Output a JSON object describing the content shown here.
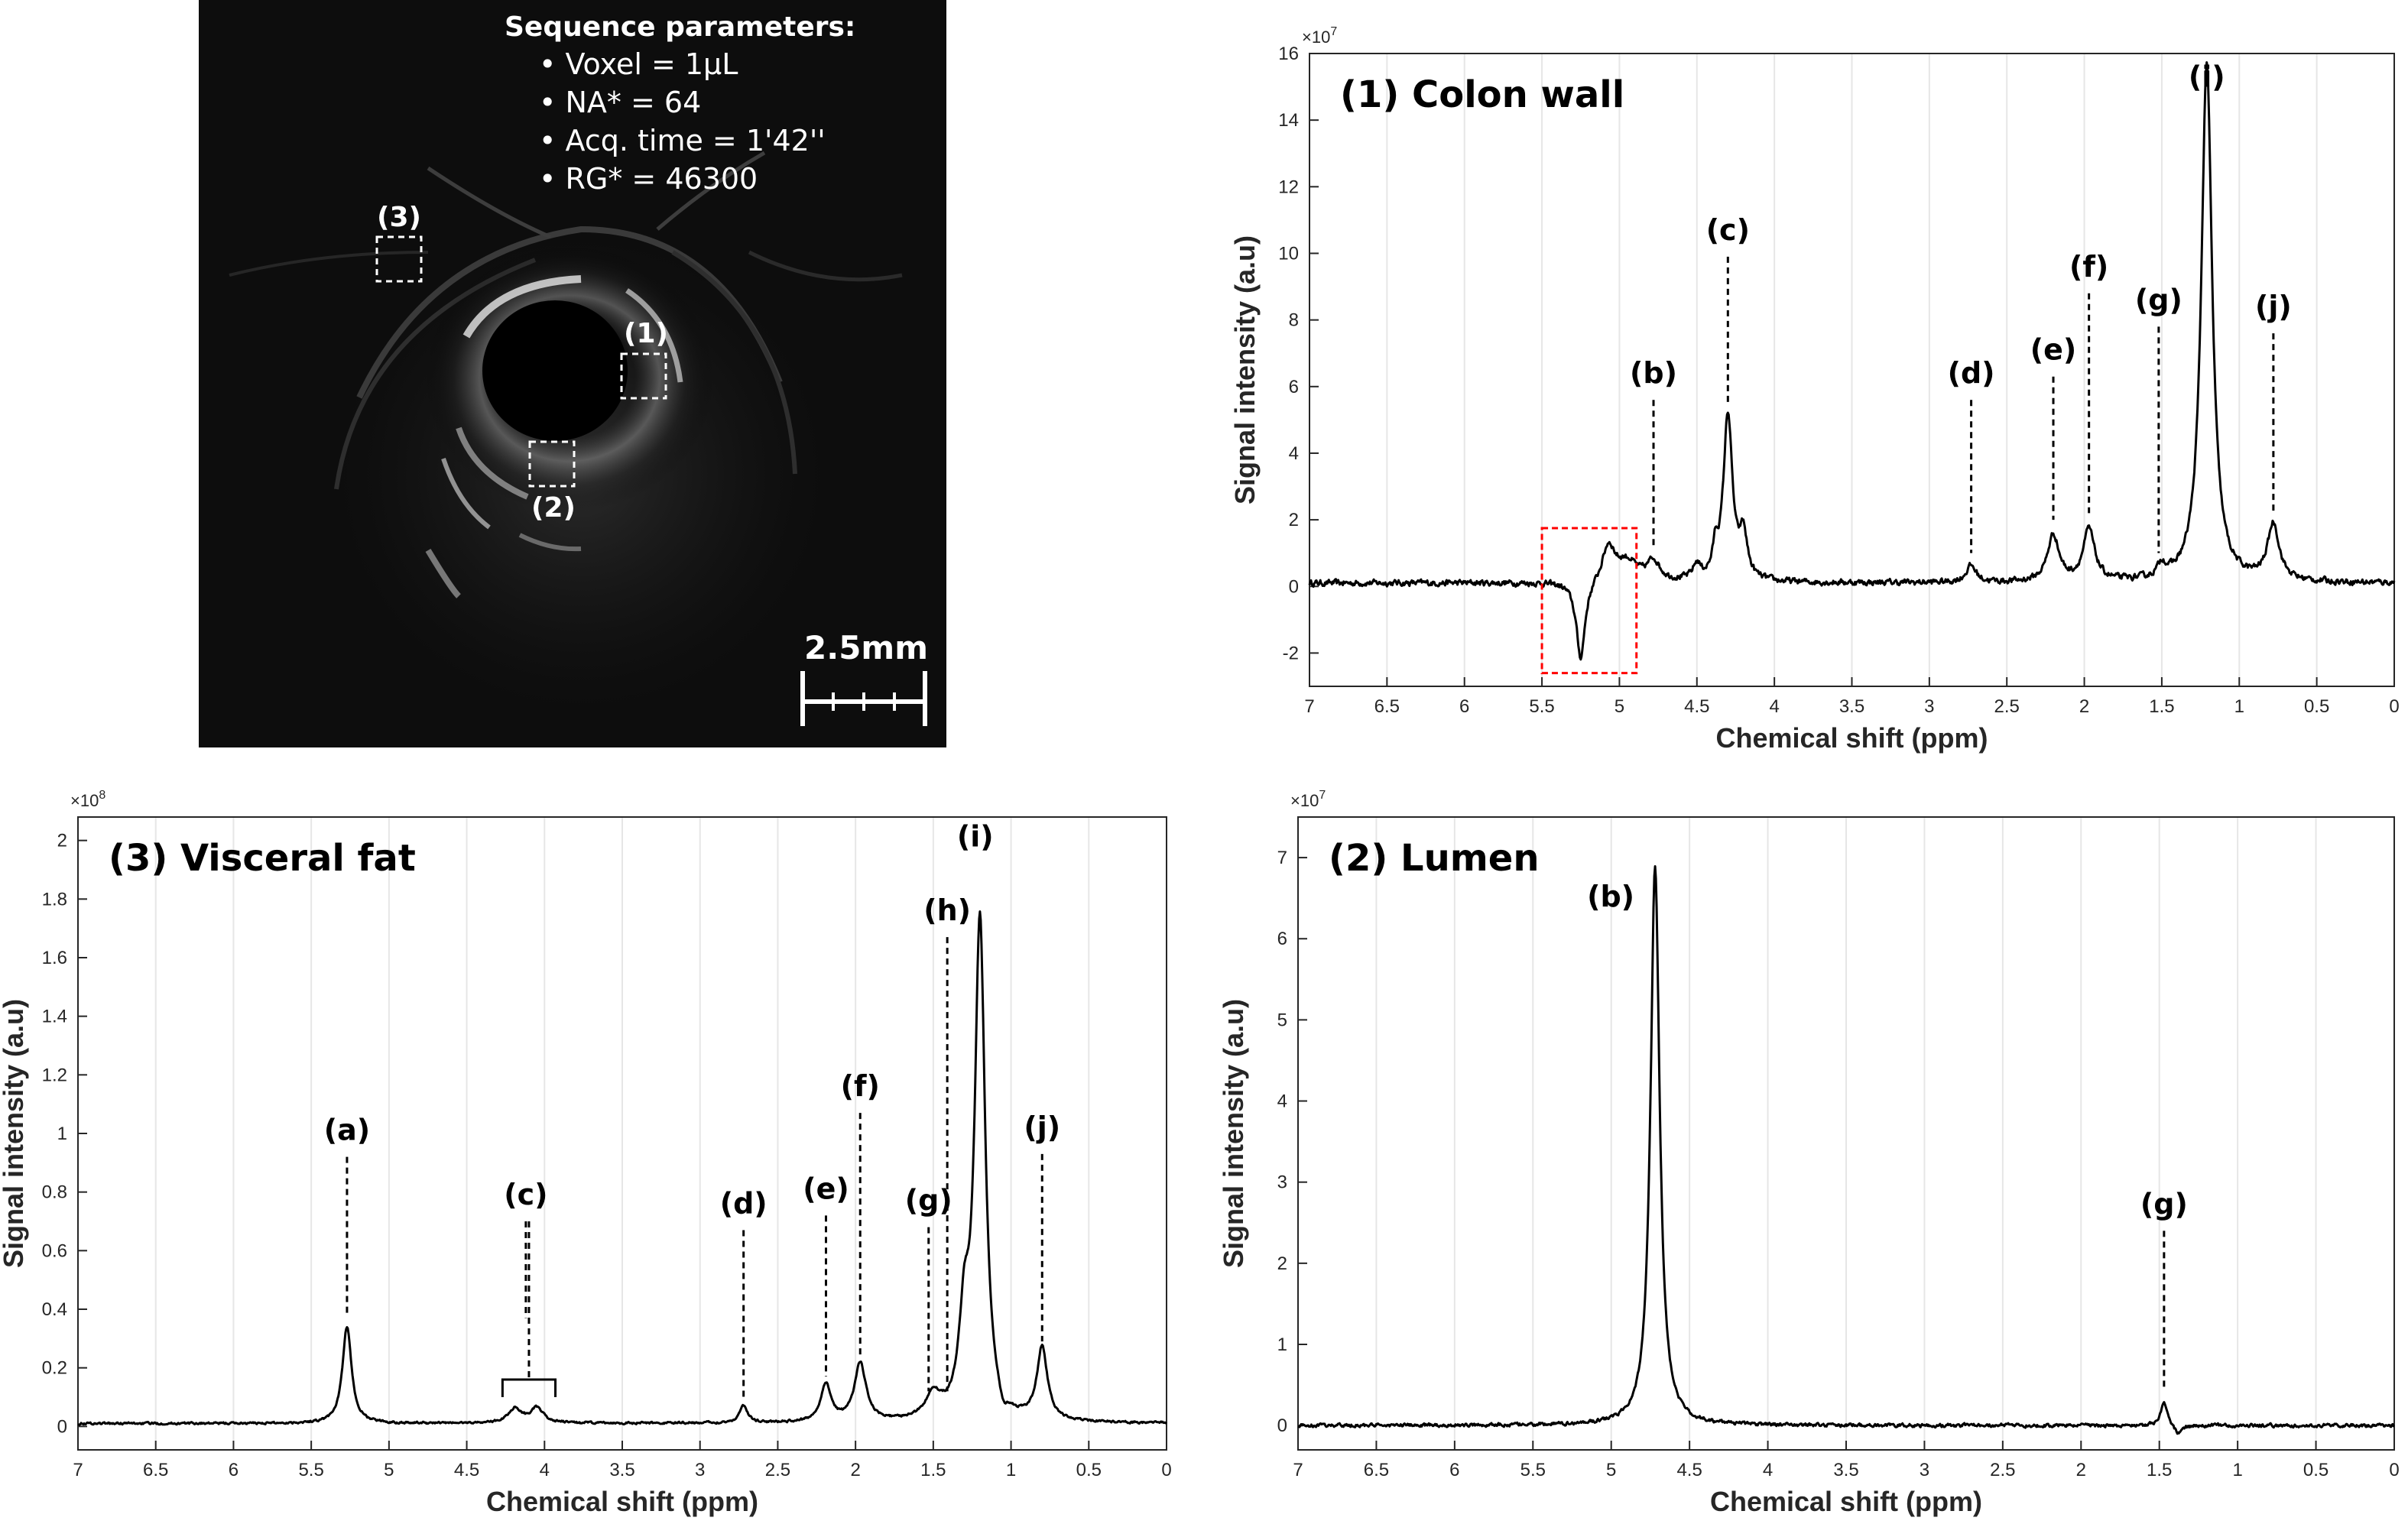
{
  "mri": {
    "params_title": "Sequence parameters:",
    "params": [
      "• Voxel = 1µL",
      "• NA* = 64",
      "• Acq. time = 1'42''",
      "• RG* = 46300"
    ],
    "roi_labels": [
      "(3)",
      "(1)",
      "(2)"
    ],
    "scale_bar": "2.5mm"
  },
  "chart_data": [
    {
      "type": "line",
      "title": "(1) Colon wall",
      "xlabel": "Chemical shift (ppm)",
      "ylabel": "Signal intensity (a.u)",
      "multiplier": "×10",
      "multiplier_exp": "7",
      "x_reversed": true,
      "xlim": [
        7,
        0
      ],
      "ylim": [
        -3,
        16
      ],
      "xticks": [
        "7",
        "6.5",
        "6",
        "5.5",
        "5",
        "4.5",
        "4",
        "3.5",
        "3",
        "2.5",
        "2",
        "1.5",
        "1",
        "0.5",
        "0"
      ],
      "yticks": [
        "-2",
        "0",
        "2",
        "4",
        "6",
        "8",
        "10",
        "12",
        "14",
        "16"
      ],
      "grid": "vertical",
      "baseline": 0.1,
      "noise": 0.15,
      "peaks": [
        {
          "x": 5.25,
          "y": -2.35,
          "w": 0.035
        },
        {
          "x": 5.07,
          "y": 1.1,
          "w": 0.05
        },
        {
          "x": 4.95,
          "y": 0.6,
          "w": 0.08
        },
        {
          "x": 4.78,
          "y": 0.6,
          "w": 0.05
        },
        {
          "x": 4.5,
          "y": 0.45,
          "w": 0.03
        },
        {
          "x": 4.38,
          "y": 0.8,
          "w": 0.02
        },
        {
          "x": 4.3,
          "y": 5.0,
          "w": 0.035
        },
        {
          "x": 4.2,
          "y": 1.3,
          "w": 0.03
        },
        {
          "x": 2.73,
          "y": 0.5,
          "w": 0.04
        },
        {
          "x": 2.2,
          "y": 1.4,
          "w": 0.045
        },
        {
          "x": 1.97,
          "y": 1.55,
          "w": 0.045
        },
        {
          "x": 1.5,
          "y": 0.4,
          "w": 0.03
        },
        {
          "x": 1.21,
          "y": 15.6,
          "w": 0.042
        },
        {
          "x": 0.78,
          "y": 1.7,
          "w": 0.045
        }
      ],
      "annotations": [
        {
          "label": "(b)",
          "x": 4.78,
          "y_top": 5.6,
          "y_bottom": 1.2
        },
        {
          "label": "(c)",
          "x": 4.3,
          "y_top": 9.9,
          "y_bottom": 5.4
        },
        {
          "label": "(d)",
          "x": 2.73,
          "y_top": 5.6,
          "y_bottom": 1.0
        },
        {
          "label": "(e)",
          "x": 2.2,
          "y_top": 6.3,
          "y_bottom": 2.0
        },
        {
          "label": "(f)",
          "x": 1.97,
          "y_top": 8.8,
          "y_bottom": 2.2
        },
        {
          "label": "(g)",
          "x": 1.52,
          "y_top": 7.8,
          "y_bottom": 1.0
        },
        {
          "label": "(i)",
          "x": 1.21,
          "y_label": 15.0
        },
        {
          "label": "(j)",
          "x": 0.78,
          "y_top": 7.6,
          "y_bottom": 2.2
        }
      ],
      "highlight": {
        "x0": 5.5,
        "x1": 4.89,
        "y0": -2.6,
        "y1": 1.75,
        "color": "#ff0000"
      }
    },
    {
      "type": "line",
      "title": "(3) Visceral fat",
      "xlabel": "Chemical shift (ppm)",
      "ylabel": "Signal intensity (a.u)",
      "multiplier": "×10",
      "multiplier_exp": "8",
      "x_reversed": true,
      "xlim": [
        7,
        0
      ],
      "ylim": [
        -0.08,
        2.08
      ],
      "xticks": [
        "7",
        "6.5",
        "6",
        "5.5",
        "5",
        "4.5",
        "4",
        "3.5",
        "3",
        "2.5",
        "2",
        "1.5",
        "1",
        "0.5",
        "0"
      ],
      "yticks": [
        "0",
        "0.2",
        "0.4",
        "0.6",
        "0.8",
        "1",
        "1.2",
        "1.4",
        "1.6",
        "1.8",
        "2"
      ],
      "grid": "vertical",
      "baseline": 0.01,
      "noise": 0.006,
      "peaks": [
        {
          "x": 5.27,
          "y": 0.33,
          "w": 0.035
        },
        {
          "x": 4.19,
          "y": 0.05,
          "w": 0.05
        },
        {
          "x": 4.05,
          "y": 0.05,
          "w": 0.05
        },
        {
          "x": 2.72,
          "y": 0.06,
          "w": 0.03
        },
        {
          "x": 2.19,
          "y": 0.13,
          "w": 0.04
        },
        {
          "x": 1.97,
          "y": 0.2,
          "w": 0.045
        },
        {
          "x": 1.5,
          "y": 0.08,
          "w": 0.06
        },
        {
          "x": 1.3,
          "y": 0.3,
          "w": 0.04
        },
        {
          "x": 1.2,
          "y": 1.7,
          "w": 0.04
        },
        {
          "x": 1.05,
          "y": -0.05,
          "w": 0.03
        },
        {
          "x": 0.8,
          "y": 0.25,
          "w": 0.04
        }
      ],
      "annotations": [
        {
          "label": "(a)",
          "x": 5.27,
          "y_top": 0.92,
          "y_bottom": 0.38
        },
        {
          "label": "(c)",
          "x": 4.12,
          "y_top": 0.7,
          "y_bottom": 0.37
        },
        {
          "label": "(d)",
          "x": 2.72,
          "y_top": 0.67,
          "y_bottom": 0.09
        },
        {
          "label": "(e)",
          "x": 2.19,
          "y_top": 0.72,
          "y_bottom": 0.17
        },
        {
          "label": "(f)",
          "x": 1.97,
          "y_top": 1.07,
          "y_bottom": 0.24
        },
        {
          "label": "(g)",
          "x": 1.53,
          "y_top": 0.68,
          "y_bottom": 0.12
        },
        {
          "label": "(h)",
          "x": 1.41,
          "y_top": 1.67,
          "y_bottom": 0.12
        },
        {
          "label": "(i)",
          "x": 1.23,
          "y_label": 1.98
        },
        {
          "label": "(j)",
          "x": 0.8,
          "y_top": 0.93,
          "y_bottom": 0.29
        }
      ],
      "bracket": {
        "x0": 4.27,
        "x1": 3.93,
        "y": 0.16,
        "tick": 0.06,
        "x_stem": 4.1,
        "y_stem_top": 0.7
      }
    },
    {
      "type": "line",
      "title": "(2) Lumen",
      "xlabel": "Chemical shift (ppm)",
      "ylabel": "Signal intensity (a.u)",
      "multiplier": "×10",
      "multiplier_exp": "7",
      "x_reversed": true,
      "xlim": [
        7,
        0
      ],
      "ylim": [
        -0.3,
        7.5
      ],
      "xticks": [
        "7",
        "6.5",
        "6",
        "5.5",
        "5",
        "4.5",
        "4",
        "3.5",
        "3",
        "2.5",
        "2",
        "1.5",
        "1",
        "0.5",
        "0"
      ],
      "yticks": [
        "0",
        "1",
        "2",
        "3",
        "4",
        "5",
        "6",
        "7"
      ],
      "grid": "vertical",
      "baseline": 0.0,
      "noise": 0.035,
      "peaks": [
        {
          "x": 4.72,
          "y": 6.9,
          "w": 0.035
        },
        {
          "x": 1.47,
          "y": 0.3,
          "w": 0.025
        },
        {
          "x": 1.38,
          "y": -0.12,
          "w": 0.03
        }
      ],
      "annotations": [
        {
          "label": "(b)",
          "x": 4.72,
          "y_label": 6.4,
          "label_offset_x": -58
        },
        {
          "label": "(g)",
          "x": 1.47,
          "y_top": 2.4,
          "y_bottom": 0.45
        }
      ]
    }
  ]
}
